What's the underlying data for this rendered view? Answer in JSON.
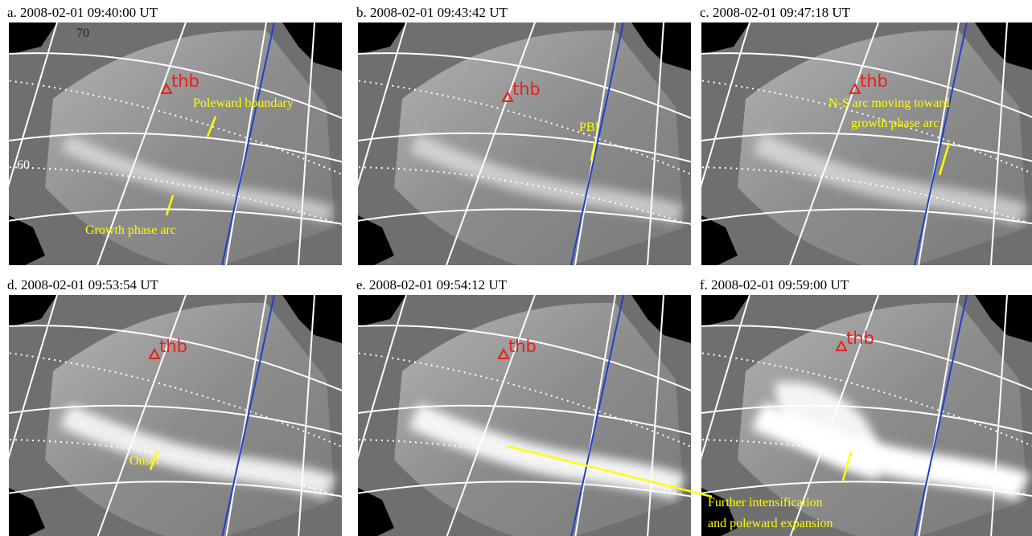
{
  "panels": [
    {
      "title": "a. 2008-02-01 09:40:00 UT",
      "station": "thb",
      "labels": [
        "70",
        "60",
        "Poleward boundary",
        "Growth phase arc"
      ]
    },
    {
      "title": "b. 2008-02-01 09:43:42 UT",
      "station": "thb",
      "labels": [
        "PBI"
      ]
    },
    {
      "title": "c. 2008-02-01 09:47:18 UT",
      "station": "thb",
      "labels": [
        "N-S arc moving toward",
        "growth phase arc"
      ]
    },
    {
      "title": "d. 2008-02-01 09:53:54 UT",
      "station": "thb",
      "labels": [
        "Onset"
      ]
    },
    {
      "title": "e. 2008-02-01 09:54:12 UT",
      "station": "thb",
      "labels": []
    },
    {
      "title": "f. 2008-02-01 09:59:00 UT",
      "station": "thb",
      "labels": []
    }
  ],
  "shared_annotation": [
    "Further intensification",
    "and poleward expansion"
  ]
}
